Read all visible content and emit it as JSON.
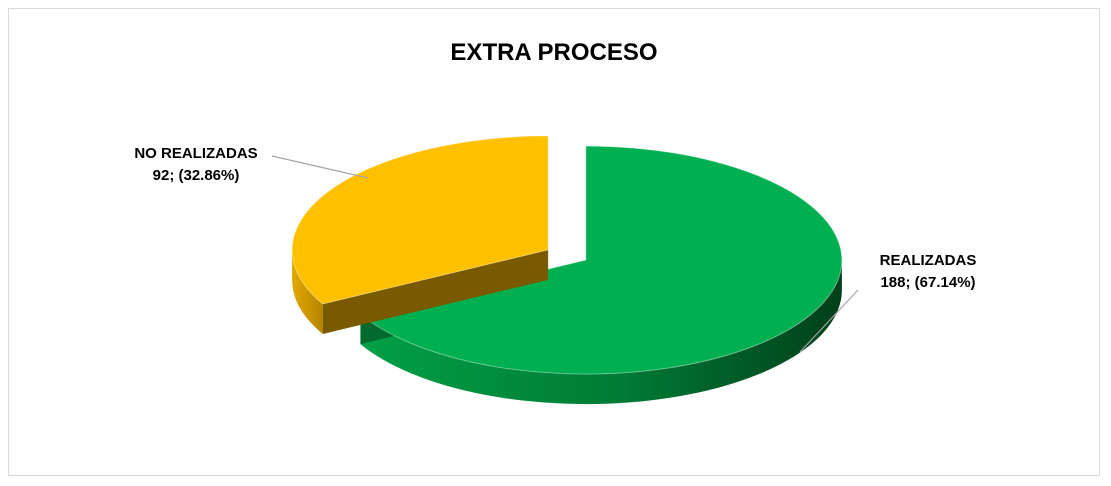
{
  "chart_data": {
    "type": "pie",
    "title": "EXTRA PROCESO",
    "slices": [
      {
        "label": "REALIZADAS",
        "value": 188,
        "percent_label": "188; (67.14%)",
        "color": "#00b050"
      },
      {
        "label": "NO REALIZADAS",
        "value": 92,
        "percent_label": "92; (32.86%)",
        "color": "#ffc000"
      }
    ],
    "legend": "none",
    "style": "3d-exploded"
  }
}
